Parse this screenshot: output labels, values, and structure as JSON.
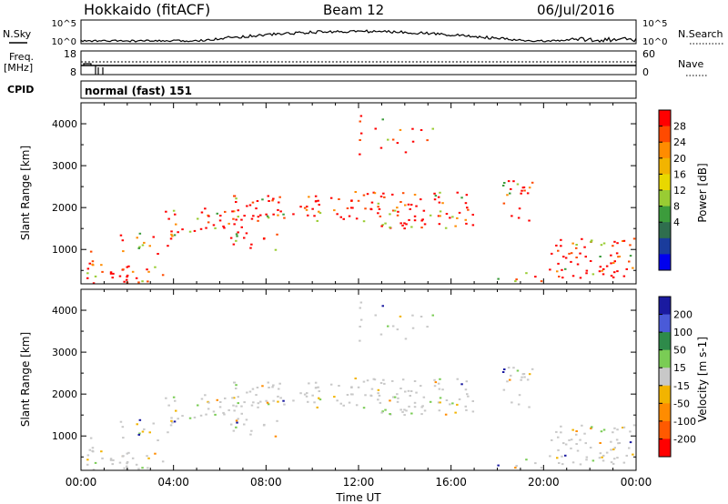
{
  "header": {
    "station": "Hokkaido (fitACF)",
    "beam": "Beam 12",
    "date": "06/Jul/2016"
  },
  "noise_panel": {
    "left_label": "N.Sky",
    "left_ticks": [
      "10^5",
      "10^0"
    ],
    "right_ticks": [
      "10^5",
      "10^0"
    ],
    "right_label": "N.Search"
  },
  "freq_panel": {
    "left_label_1": "Freq.",
    "left_label_2": "[MHz]",
    "left_ticks": [
      "18",
      "8"
    ],
    "right_ticks": [
      "60",
      "0"
    ],
    "right_label": "Nave"
  },
  "cpid_panel": {
    "label": "CPID",
    "text": "normal (fast) 151"
  },
  "chart_data": [
    {
      "type": "heatmap",
      "name": "power",
      "ylabel": "Slant Range [km]",
      "yticks": [
        1000,
        2000,
        3000,
        4000
      ],
      "ylim": [
        180,
        4500
      ],
      "xlim": [
        0,
        24
      ],
      "colorbar": {
        "label": "Power [dB]",
        "ticks": [
          "28",
          "24",
          "20",
          "16",
          "12",
          "8",
          "4"
        ],
        "colors": [
          "#ff0000",
          "#ff4a00",
          "#ff8c00",
          "#f2b400",
          "#e8d800",
          "#99cc33",
          "#3c9c3c",
          "#2f6e4e",
          "#1a3c9c",
          "#0000ee"
        ]
      }
    },
    {
      "type": "heatmap",
      "name": "velocity",
      "ylabel": "Slant Range [km]",
      "yticks": [
        1000,
        2000,
        3000,
        4000
      ],
      "ylim": [
        180,
        4500
      ],
      "xlim": [
        0,
        24
      ],
      "xticks": [
        "00:00",
        "04:00",
        "08:00",
        "12:00",
        "16:00",
        "20:00",
        "00:00"
      ],
      "xlabel": "Time UT",
      "colorbar": {
        "label": "Velocity [m s-1]",
        "ticks": [
          "200",
          "100",
          "50",
          "15",
          "-15",
          "-50",
          "-100",
          "-200"
        ],
        "colors": [
          "#1a1aa0",
          "#4a5ad8",
          "#2e8a4a",
          "#7acc55",
          "#c8c8c8",
          "#f2b400",
          "#ff8c00",
          "#ff5a00",
          "#ff0000"
        ]
      }
    }
  ]
}
